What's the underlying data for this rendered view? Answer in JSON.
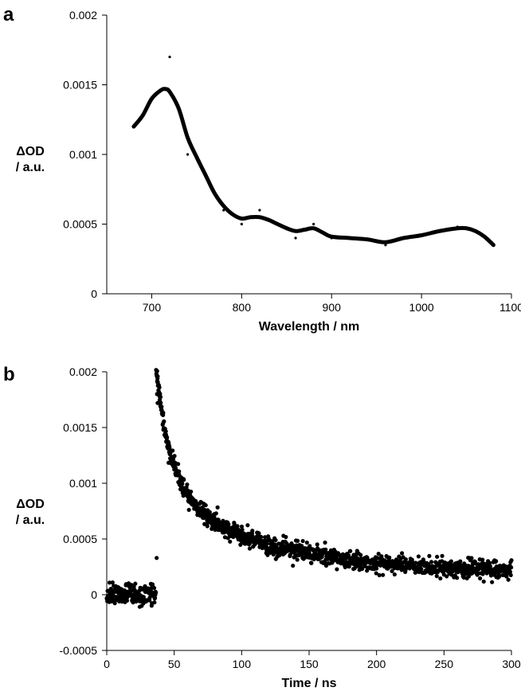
{
  "chart_data": [
    {
      "type": "scatter",
      "panel_label": "a",
      "title": "",
      "xlabel": "Wavelength / nm",
      "ylabel": [
        "ΔOD",
        "/ a.u."
      ],
      "xlim": [
        650,
        1100
      ],
      "ylim": [
        0,
        0.002
      ],
      "xticks": [
        700,
        800,
        900,
        1000,
        1100
      ],
      "xtick_labels": [
        "700",
        "800",
        "900",
        "1000",
        "1100"
      ],
      "yticks": [
        0,
        0.0005,
        0.001,
        0.0015,
        0.002
      ],
      "ytick_labels": [
        "0",
        "0.0005",
        "0.001",
        "0.0015",
        "0.002"
      ],
      "grid": false,
      "series": [
        {
          "kind": "fit-curve",
          "color": "#000000",
          "points": [
            [
              680,
              0.0012
            ],
            [
              690,
              0.00128
            ],
            [
              700,
              0.0014
            ],
            [
              710,
              0.00146
            ],
            [
              715,
              0.00147
            ],
            [
              720,
              0.00145
            ],
            [
              730,
              0.00133
            ],
            [
              740,
              0.00112
            ],
            [
              750,
              0.00098
            ],
            [
              760,
              0.00085
            ],
            [
              770,
              0.00072
            ],
            [
              780,
              0.00063
            ],
            [
              790,
              0.00057
            ],
            [
              800,
              0.00054
            ],
            [
              810,
              0.00055
            ],
            [
              820,
              0.00055
            ],
            [
              830,
              0.00053
            ],
            [
              840,
              0.0005
            ],
            [
              850,
              0.00047
            ],
            [
              860,
              0.00045
            ],
            [
              870,
              0.00046
            ],
            [
              880,
              0.00047
            ],
            [
              890,
              0.00044
            ],
            [
              900,
              0.00041
            ],
            [
              920,
              0.0004
            ],
            [
              940,
              0.00039
            ],
            [
              960,
              0.00037
            ],
            [
              980,
              0.0004
            ],
            [
              1000,
              0.00042
            ],
            [
              1020,
              0.00045
            ],
            [
              1040,
              0.00047
            ],
            [
              1050,
              0.00047
            ],
            [
              1060,
              0.00045
            ],
            [
              1070,
              0.00041
            ],
            [
              1080,
              0.00035
            ]
          ]
        },
        {
          "kind": "data-points",
          "color": "#000000",
          "points": [
            [
              720,
              0.0017
            ],
            [
              740,
              0.001
            ],
            [
              780,
              0.0006
            ],
            [
              800,
              0.0005
            ],
            [
              820,
              0.0006
            ],
            [
              860,
              0.0004
            ],
            [
              880,
              0.0005
            ],
            [
              900,
              0.0004
            ],
            [
              960,
              0.00035
            ],
            [
              1040,
              0.00048
            ],
            [
              1080,
              0.00035
            ]
          ]
        }
      ]
    },
    {
      "type": "scatter",
      "panel_label": "b",
      "title": "",
      "xlabel": "Time / ns",
      "ylabel": [
        "ΔOD",
        "/ a.u."
      ],
      "xlim": [
        0,
        300
      ],
      "ylim": [
        -0.0005,
        0.002
      ],
      "xticks": [
        0,
        50,
        100,
        150,
        200,
        250,
        300
      ],
      "xtick_labels": [
        "0",
        "50",
        "100",
        "150",
        "200",
        "250",
        "300"
      ],
      "yticks": [
        -0.0005,
        0,
        0.0005,
        0.001,
        0.0015,
        0.002
      ],
      "ytick_labels": [
        "-0.0005",
        "0",
        "0.0005",
        "0.001",
        "0.0015",
        "0.002"
      ],
      "grid": false,
      "series": [
        {
          "kind": "decay-trace",
          "color": "#000000",
          "marker_size": 2.6,
          "rise_time_ns": 37,
          "baseline": 0,
          "baseline_noise": 5e-05,
          "peak": 0.0018,
          "components": [
            {
              "amplitude": 0.00085,
              "lifetime_ns": 9
            },
            {
              "amplitude": 0.00075,
              "lifetime_ns": 45
            },
            {
              "amplitude": 0.0004,
              "lifetime_ns": 400
            }
          ],
          "decay_noise": 4e-05,
          "point_count": 1500
        }
      ]
    }
  ]
}
